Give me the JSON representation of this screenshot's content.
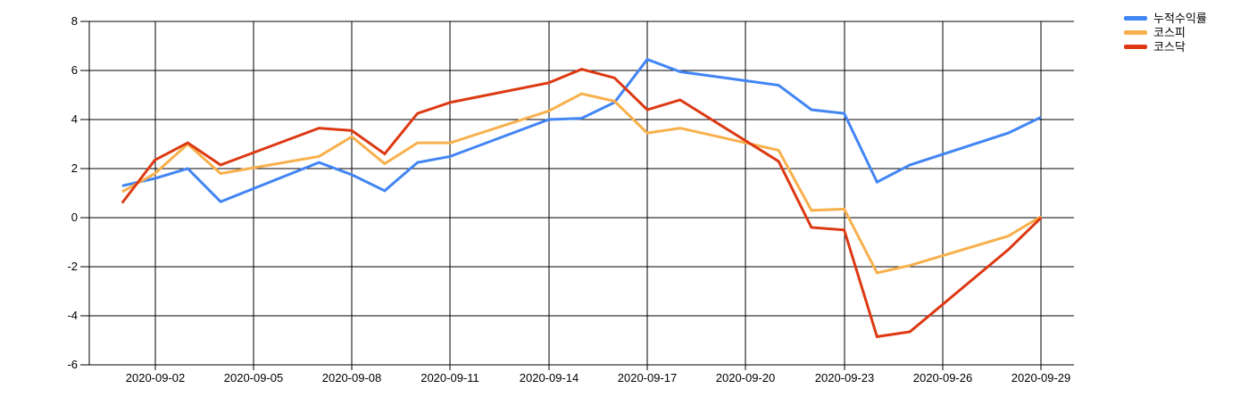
{
  "chart_data": {
    "type": "line",
    "title": "",
    "xlabel": "",
    "ylabel": "",
    "x": [
      "2020-09-01",
      "2020-09-02",
      "2020-09-03",
      "2020-09-04",
      "2020-09-07",
      "2020-09-08",
      "2020-09-09",
      "2020-09-10",
      "2020-09-11",
      "2020-09-14",
      "2020-09-15",
      "2020-09-16",
      "2020-09-17",
      "2020-09-18",
      "2020-09-21",
      "2020-09-22",
      "2020-09-23",
      "2020-09-24",
      "2020-09-25",
      "2020-09-28",
      "2020-09-29"
    ],
    "series": [
      {
        "key": "cumulative-return",
        "name": "누적수익률",
        "color": "#4285F4",
        "values": [
          1.3,
          1.6,
          2.0,
          0.65,
          2.25,
          1.75,
          1.1,
          2.25,
          2.5,
          4.0,
          4.05,
          4.7,
          6.45,
          5.95,
          5.4,
          4.4,
          4.25,
          1.45,
          2.15,
          3.45,
          4.1
        ]
      },
      {
        "key": "kospi",
        "name": "코스피",
        "color": "#F8B04C",
        "values": [
          1.05,
          1.8,
          3.0,
          1.8,
          2.5,
          3.3,
          2.2,
          3.05,
          3.05,
          4.35,
          5.05,
          4.75,
          3.45,
          3.65,
          2.75,
          0.3,
          0.35,
          -2.25,
          -1.95,
          -0.75,
          0.05
        ]
      },
      {
        "key": "kosdaq",
        "name": "코스닥",
        "color": "#DC3912",
        "values": [
          0.6,
          2.35,
          3.05,
          2.15,
          3.65,
          3.55,
          2.6,
          4.25,
          4.7,
          5.5,
          6.05,
          5.7,
          4.4,
          4.8,
          2.3,
          -0.4,
          -0.5,
          -4.85,
          -4.65,
          -1.3,
          0.0
        ]
      }
    ],
    "x_ticks": [
      "2020-09-02",
      "2020-09-05",
      "2020-09-08",
      "2020-09-11",
      "2020-09-14",
      "2020-09-17",
      "2020-09-20",
      "2020-09-23",
      "2020-09-26",
      "2020-09-29"
    ],
    "y_ticks": [
      8,
      6,
      4,
      2,
      0,
      -2,
      -4,
      -6
    ],
    "ylim": [
      -6,
      8
    ],
    "x_window": [
      "2020-08-31",
      "2020-09-30"
    ],
    "grid": true,
    "grid_color": "#000000",
    "background": "#ffffff",
    "legend_position": "top-right",
    "line_width": 3
  }
}
